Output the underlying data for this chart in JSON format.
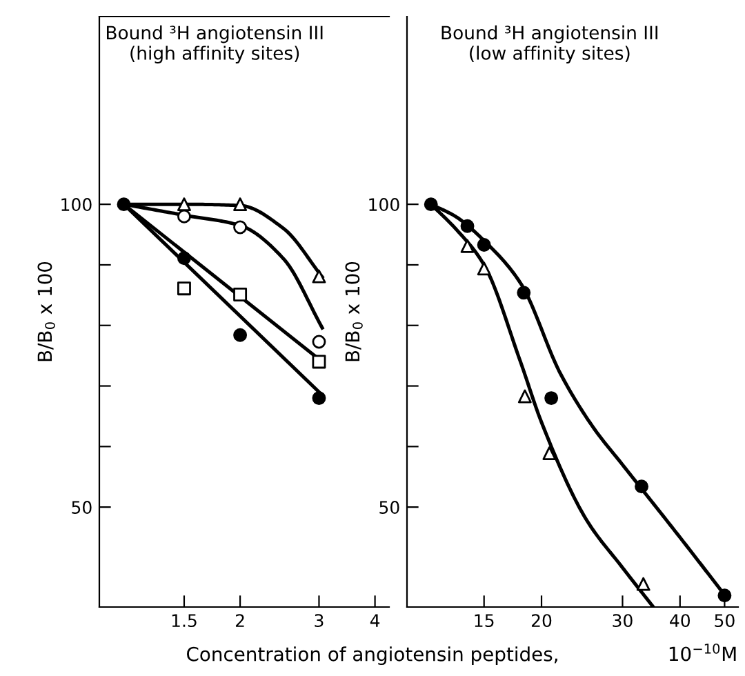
{
  "chart_data": [
    {
      "type": "scatter",
      "title": "Bound ³H angiotensin III\n(high affinity sites)",
      "ylabel": "B/B$_{0}$ x 100",
      "xlabel": "Concentration of angiotensin peptides,",
      "log": "x",
      "xlim": [
        0.97,
        4.3
      ],
      "xticks": [
        1.5,
        2,
        3,
        4
      ],
      "ylim": [
        33.5,
        131
      ],
      "yticks": [
        {
          "value": 50,
          "label": "50"
        },
        {
          "value": 60,
          "label": null
        },
        {
          "value": 70,
          "label": null
        },
        {
          "value": 80,
          "label": null
        },
        {
          "value": 90,
          "label": null
        },
        {
          "value": 100,
          "label": "100"
        }
      ],
      "grid": false,
      "legend": false,
      "series": [
        {
          "color": "#000000",
          "marker": "circle",
          "x": [
            1.1,
            1.5,
            2,
            3
          ],
          "values": [
            100,
            91.1,
            78.4,
            68
          ]
        },
        {
          "color": "#ffffff",
          "marker": "circle",
          "x": [
            1.5,
            2,
            3
          ],
          "values": [
            98,
            96.2,
            77.3
          ]
        },
        {
          "color": "#ffffff",
          "marker": "square",
          "x": [
            1.5,
            2,
            3
          ],
          "values": [
            86.1,
            85.1,
            74
          ]
        },
        {
          "color": "#ffffff",
          "marker": "triangle",
          "x": [
            1.5,
            2,
            3
          ],
          "values": [
            100,
            100,
            88.1
          ]
        },
        {
          "type": "line",
          "color": "#000000",
          "x": [
            1.1,
            1.5,
            2,
            2.5,
            3.05
          ],
          "values": [
            100,
            100,
            99.8,
            96,
            88
          ]
        },
        {
          "type": "line",
          "color": "#000000",
          "x": [
            1.1,
            1.5,
            2,
            2.5,
            3.05
          ],
          "values": [
            100,
            98.2,
            96.5,
            91,
            79.6
          ]
        },
        {
          "type": "line",
          "color": "#000000",
          "x": [
            1.1,
            3.05
          ],
          "values": [
            100,
            74
          ]
        },
        {
          "type": "line",
          "color": "#000000",
          "x": [
            1.1,
            3.05
          ],
          "values": [
            100,
            68.5
          ]
        }
      ]
    },
    {
      "type": "scatter",
      "title": "Bound ³H angiotensin III\n(low affinity sites)",
      "ylabel": "B/B$_{0}$ x 100",
      "xlabel": "10$^{−10}$M",
      "log": "x",
      "xlim": [
        10.2,
        53.5
      ],
      "xticks": [
        15,
        20,
        30,
        40,
        50
      ],
      "ylim": [
        33.5,
        131
      ],
      "yticks": [
        {
          "value": 50,
          "label": "50"
        },
        {
          "value": 60,
          "label": null
        },
        {
          "value": 70,
          "label": null
        },
        {
          "value": 80,
          "label": null
        },
        {
          "value": 90,
          "label": null
        },
        {
          "value": 100,
          "label": "100"
        }
      ],
      "grid": false,
      "legend": false,
      "series": [
        {
          "color": "#000000",
          "marker": "circle",
          "x": [
            11.5,
            13.8,
            15,
            18.3,
            21,
            33,
            50
          ],
          "values": [
            100,
            96.4,
            93.3,
            85.4,
            68,
            53.4,
            35.4
          ]
        },
        {
          "color": "#ffffff",
          "marker": "triangle",
          "x": [
            13.8,
            15,
            18.4,
            20.8,
            33.3
          ],
          "values": [
            93.1,
            89.4,
            68.3,
            58.9,
            37.3
          ]
        },
        {
          "type": "line",
          "color": "#000000",
          "x": [
            11.5,
            13,
            15,
            18,
            22,
            26,
            30,
            40,
            50
          ],
          "values": [
            100,
            98,
            94,
            87,
            72,
            63,
            57,
            45,
            35.5
          ]
        },
        {
          "type": "line",
          "color": "#000000",
          "x": [
            11.5,
            13,
            15,
            18,
            20,
            25,
            30,
            35
          ],
          "values": [
            100,
            96,
            90,
            74,
            64,
            48,
            40,
            33.5
          ]
        }
      ]
    }
  ]
}
